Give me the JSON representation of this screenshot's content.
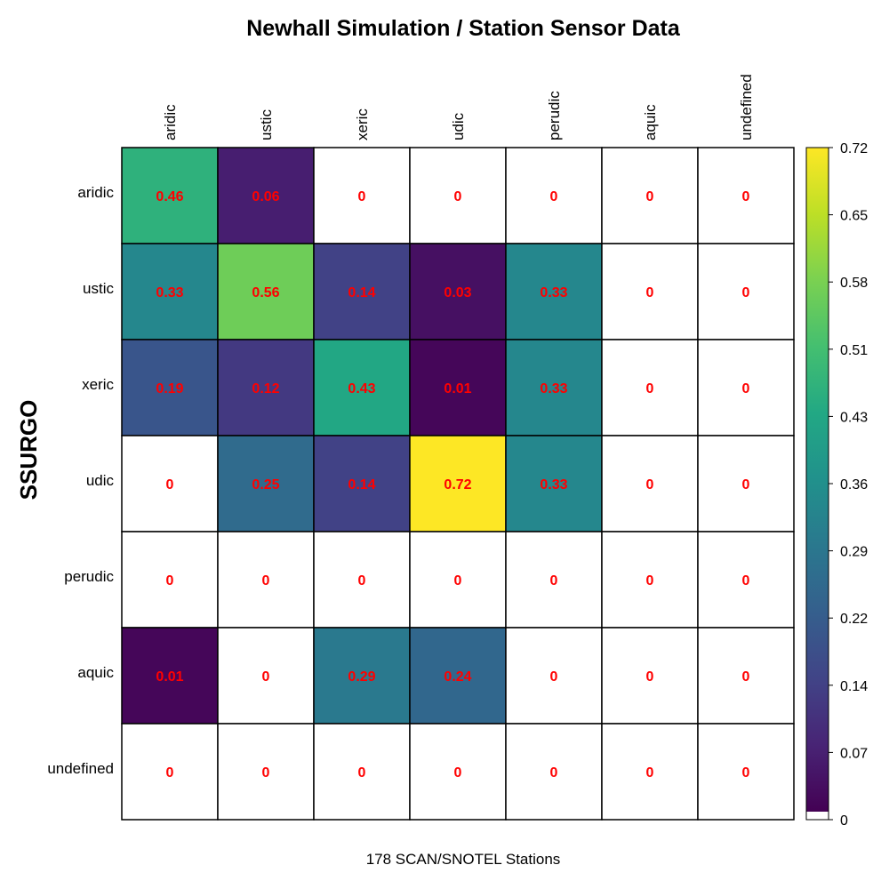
{
  "chart_data": {
    "type": "heatmap",
    "title": "Newhall Simulation / Station Sensor Data",
    "xlabel": "178 SCAN/SNOTEL Stations",
    "ylabel": "SSURGO",
    "columns": [
      "aridic",
      "ustic",
      "xeric",
      "udic",
      "perudic",
      "aquic",
      "undefined"
    ],
    "rows": [
      "aridic",
      "ustic",
      "xeric",
      "udic",
      "perudic",
      "aquic",
      "undefined"
    ],
    "values": [
      [
        0.46,
        0.06,
        0,
        0,
        0,
        0,
        0
      ],
      [
        0.33,
        0.56,
        0.14,
        0.03,
        0.33,
        0,
        0
      ],
      [
        0.19,
        0.12,
        0.43,
        0.01,
        0.33,
        0,
        0
      ],
      [
        0,
        0.25,
        0.14,
        0.72,
        0.33,
        0,
        0
      ],
      [
        0,
        0,
        0,
        0,
        0,
        0,
        0
      ],
      [
        0.01,
        0,
        0.29,
        0.24,
        0,
        0,
        0
      ],
      [
        0,
        0,
        0,
        0,
        0,
        0,
        0
      ]
    ],
    "colorbar": {
      "colormap": "viridis",
      "range": [
        0,
        0.72
      ],
      "zero_color": "#ffffff",
      "ticks": [
        "0",
        "0.07",
        "0.14",
        "0.22",
        "0.29",
        "0.36",
        "0.43",
        "0.51",
        "0.58",
        "0.65",
        "0.72"
      ]
    },
    "cell_label_color": "#ff0000"
  }
}
